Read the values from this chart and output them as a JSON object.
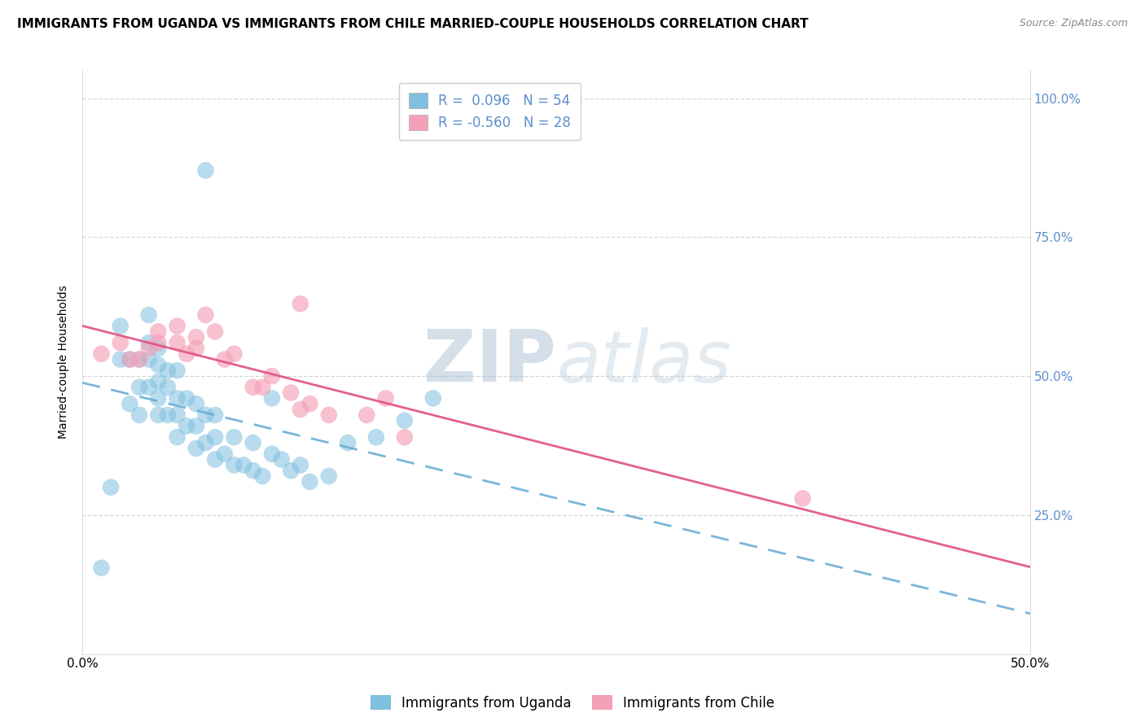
{
  "title": "IMMIGRANTS FROM UGANDA VS IMMIGRANTS FROM CHILE MARRIED-COUPLE HOUSEHOLDS CORRELATION CHART",
  "source": "Source: ZipAtlas.com",
  "ylabel": "Married-couple Households",
  "xlim": [
    0.0,
    0.5
  ],
  "ylim": [
    0.0,
    1.05
  ],
  "legend1_label": "R =  0.096   N = 54",
  "legend2_label": "R = -0.560   N = 28",
  "legend_title_uganda": "Immigrants from Uganda",
  "legend_title_chile": "Immigrants from Chile",
  "color_uganda": "#7fbfdf",
  "color_chile": "#f4a0b8",
  "color_uganda_line": "#6baed6",
  "color_chile_line": "#e05080",
  "background_color": "#ffffff",
  "grid_color": "#cccccc",
  "watermark_color": "#c8d8e8",
  "right_tick_color": "#5b8fcc",
  "uganda_points_x": [
    0.01,
    0.015,
    0.02,
    0.02,
    0.025,
    0.025,
    0.03,
    0.03,
    0.03,
    0.035,
    0.035,
    0.035,
    0.035,
    0.04,
    0.04,
    0.04,
    0.04,
    0.04,
    0.045,
    0.045,
    0.045,
    0.05,
    0.05,
    0.05,
    0.05,
    0.055,
    0.055,
    0.06,
    0.06,
    0.06,
    0.065,
    0.065,
    0.07,
    0.07,
    0.07,
    0.075,
    0.08,
    0.08,
    0.085,
    0.09,
    0.09,
    0.095,
    0.1,
    0.105,
    0.11,
    0.115,
    0.12,
    0.13,
    0.14,
    0.155,
    0.17,
    0.185,
    0.065,
    0.1
  ],
  "uganda_points_y": [
    0.155,
    0.3,
    0.53,
    0.59,
    0.45,
    0.53,
    0.43,
    0.48,
    0.53,
    0.48,
    0.53,
    0.56,
    0.61,
    0.43,
    0.46,
    0.49,
    0.52,
    0.55,
    0.43,
    0.48,
    0.51,
    0.39,
    0.43,
    0.46,
    0.51,
    0.41,
    0.46,
    0.37,
    0.41,
    0.45,
    0.38,
    0.43,
    0.35,
    0.39,
    0.43,
    0.36,
    0.34,
    0.39,
    0.34,
    0.33,
    0.38,
    0.32,
    0.36,
    0.35,
    0.33,
    0.34,
    0.31,
    0.32,
    0.38,
    0.39,
    0.42,
    0.46,
    0.87,
    0.46
  ],
  "chile_points_x": [
    0.01,
    0.02,
    0.025,
    0.03,
    0.035,
    0.04,
    0.04,
    0.05,
    0.05,
    0.055,
    0.06,
    0.06,
    0.065,
    0.07,
    0.075,
    0.08,
    0.09,
    0.095,
    0.1,
    0.11,
    0.115,
    0.12,
    0.13,
    0.15,
    0.16,
    0.17,
    0.38,
    0.115
  ],
  "chile_points_y": [
    0.54,
    0.56,
    0.53,
    0.53,
    0.55,
    0.56,
    0.58,
    0.56,
    0.59,
    0.54,
    0.57,
    0.55,
    0.61,
    0.58,
    0.53,
    0.54,
    0.48,
    0.48,
    0.5,
    0.47,
    0.44,
    0.45,
    0.43,
    0.43,
    0.46,
    0.39,
    0.28,
    0.63
  ],
  "title_fontsize": 11,
  "axis_label_fontsize": 10,
  "tick_fontsize": 11
}
